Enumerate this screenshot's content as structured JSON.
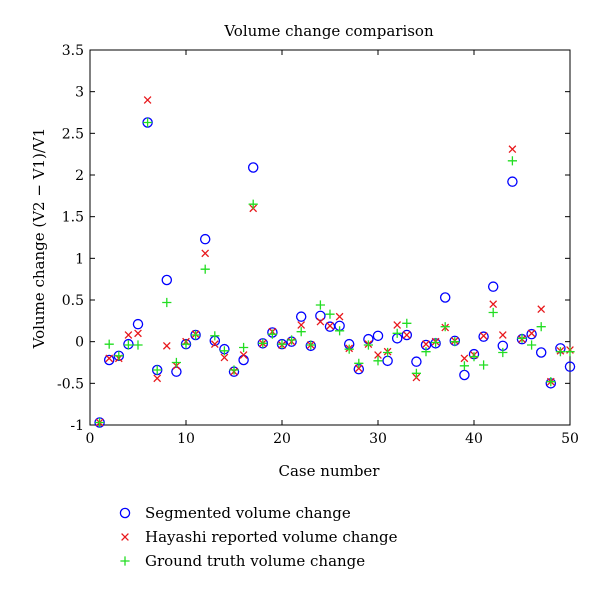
{
  "chart_data": {
    "type": "scatter",
    "title": "Volume change comparison",
    "xlabel": "Case number",
    "ylabel": "Volume change (V2 − V1)/V1",
    "xlim": [
      0,
      50
    ],
    "ylim": [
      -1,
      3.5
    ],
    "xticks": [
      0,
      10,
      20,
      30,
      40,
      50
    ],
    "yticks": [
      -1,
      -0.5,
      0,
      0.5,
      1,
      1.5,
      2,
      2.5,
      3,
      3.5
    ],
    "grid": false,
    "legend_position": "bottom-outside",
    "series": [
      {
        "name": "Segmented volume change",
        "marker": "circle",
        "color": "#0000ff",
        "x": [
          1,
          2,
          3,
          4,
          5,
          6,
          7,
          8,
          9,
          10,
          11,
          12,
          13,
          14,
          15,
          16,
          17,
          18,
          19,
          20,
          21,
          22,
          23,
          24,
          25,
          26,
          27,
          28,
          29,
          30,
          31,
          32,
          33,
          34,
          35,
          36,
          37,
          38,
          39,
          40,
          41,
          42,
          43,
          44,
          45,
          46,
          47,
          48,
          49,
          50
        ],
        "y": [
          -0.97,
          -0.22,
          -0.17,
          -0.03,
          0.21,
          2.63,
          -0.34,
          0.74,
          -0.36,
          -0.03,
          0.08,
          1.23,
          0.01,
          -0.09,
          -0.36,
          -0.22,
          2.09,
          -0.02,
          0.11,
          -0.03,
          0.0,
          0.3,
          -0.05,
          0.31,
          0.18,
          0.19,
          -0.03,
          -0.33,
          0.03,
          0.07,
          -0.23,
          0.04,
          0.08,
          -0.24,
          -0.04,
          -0.02,
          0.53,
          0.01,
          -0.4,
          -0.15,
          0.06,
          0.66,
          -0.05,
          1.92,
          0.03,
          0.09,
          -0.13,
          -0.5,
          -0.08,
          -0.3
        ]
      },
      {
        "name": "Hayashi reported volume change",
        "marker": "x",
        "color": "#e8181c",
        "x": [
          1,
          2,
          3,
          4,
          5,
          6,
          7,
          8,
          9,
          10,
          11,
          12,
          13,
          14,
          15,
          16,
          17,
          18,
          19,
          20,
          21,
          22,
          23,
          24,
          25,
          26,
          27,
          28,
          29,
          30,
          31,
          32,
          33,
          34,
          35,
          36,
          37,
          38,
          39,
          40,
          41,
          42,
          43,
          44,
          45,
          46,
          47,
          48,
          49,
          50
        ],
        "y": [
          -0.97,
          -0.2,
          -0.2,
          0.08,
          0.1,
          2.9,
          -0.44,
          -0.05,
          -0.29,
          0.0,
          0.09,
          1.06,
          -0.03,
          -0.19,
          -0.36,
          -0.16,
          1.6,
          -0.02,
          0.12,
          -0.04,
          0.0,
          0.2,
          -0.04,
          0.24,
          0.19,
          0.3,
          -0.08,
          -0.32,
          -0.03,
          -0.16,
          -0.12,
          0.2,
          0.08,
          -0.43,
          -0.03,
          0.0,
          0.17,
          0.01,
          -0.2,
          -0.16,
          0.07,
          0.45,
          0.08,
          2.31,
          0.03,
          0.1,
          0.39,
          -0.48,
          -0.11,
          -0.1
        ]
      },
      {
        "name": "Ground truth volume change",
        "marker": "plus",
        "color": "#22dd22",
        "x": [
          1,
          2,
          3,
          4,
          5,
          6,
          7,
          8,
          9,
          10,
          11,
          12,
          13,
          14,
          15,
          16,
          17,
          18,
          19,
          20,
          21,
          22,
          23,
          24,
          25,
          26,
          27,
          28,
          29,
          30,
          31,
          32,
          33,
          34,
          35,
          36,
          37,
          38,
          39,
          40,
          41,
          42,
          43,
          44,
          45,
          46,
          47,
          48,
          49,
          50
        ],
        "y": [
          -0.97,
          -0.03,
          -0.17,
          -0.04,
          -0.04,
          2.63,
          -0.34,
          0.47,
          -0.25,
          -0.03,
          0.08,
          0.87,
          0.07,
          -0.11,
          -0.34,
          -0.07,
          1.65,
          -0.02,
          0.09,
          -0.03,
          0.02,
          0.12,
          -0.04,
          0.44,
          0.33,
          0.13,
          -0.09,
          -0.26,
          -0.04,
          -0.23,
          -0.13,
          0.1,
          0.22,
          -0.38,
          -0.12,
          -0.01,
          0.18,
          0.0,
          -0.29,
          -0.18,
          -0.28,
          0.35,
          -0.13,
          2.17,
          0.04,
          -0.04,
          0.18,
          -0.48,
          -0.12,
          -0.12
        ]
      }
    ]
  }
}
